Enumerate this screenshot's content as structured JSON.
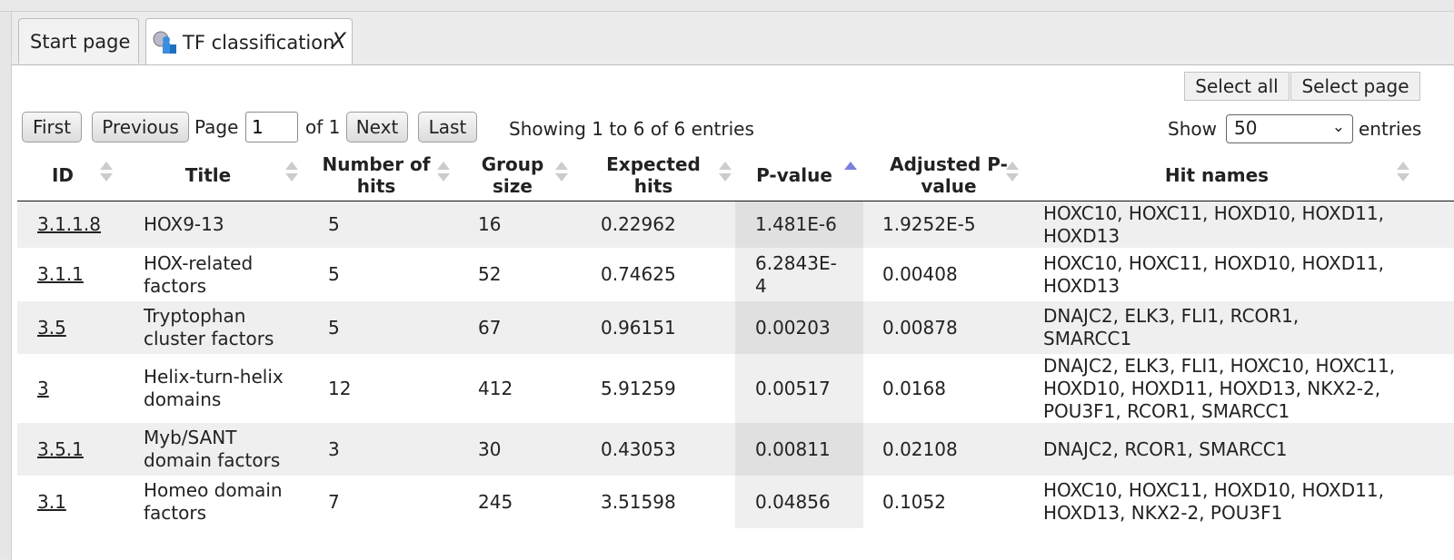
{
  "tabs": [
    {
      "label": "Start page"
    },
    {
      "label": "TF classification",
      "close": "X"
    }
  ],
  "toolbar": {
    "select_all": "Select all",
    "select_page": "Select page"
  },
  "pagination": {
    "first": "First",
    "previous": "Previous",
    "page_label": "Page",
    "page_value": "1",
    "of_label": "of 1",
    "next": "Next",
    "last": "Last",
    "showing": "Showing 1 to 6 of 6 entries",
    "show_label": "Show",
    "show_value": "50",
    "entries_label": "entries"
  },
  "table": {
    "columns": [
      "ID",
      "Title",
      "Number of hits",
      "Group size",
      "Expected hits",
      "P-value",
      "Adjusted P-value",
      "Hit names"
    ],
    "sorted_column": "P-value",
    "rows": [
      {
        "id": "3.1.1.8",
        "title": "HOX9-13",
        "hits": "5",
        "group": "16",
        "expected": "0.22962",
        "p": "1.481E-6",
        "adj": "1.9252E-5",
        "names": "HOXC10, HOXC11, HOXD10, HOXD11, HOXD13"
      },
      {
        "id": "3.1.1",
        "title": "HOX-related factors",
        "hits": "5",
        "group": "52",
        "expected": "0.74625",
        "p": "6.2843E-4",
        "adj": "0.00408",
        "names": "HOXC10, HOXC11, HOXD10, HOXD11, HOXD13"
      },
      {
        "id": "3.5",
        "title": "Tryptophan cluster factors",
        "hits": "5",
        "group": "67",
        "expected": "0.96151",
        "p": "0.00203",
        "adj": "0.00878",
        "names": "DNAJC2, ELK3, FLI1, RCOR1, SMARCC1"
      },
      {
        "id": "3",
        "title": "Helix-turn-helix domains",
        "hits": "12",
        "group": "412",
        "expected": "5.91259",
        "p": "0.00517",
        "adj": "0.0168",
        "names": "DNAJC2, ELK3, FLI1, HOXC10, HOXC11, HOXD10, HOXD11, HOXD13, NKX2-2, POU3F1, RCOR1, SMARCC1"
      },
      {
        "id": "3.5.1",
        "title": "Myb/SANT domain factors",
        "hits": "3",
        "group": "30",
        "expected": "0.43053",
        "p": "0.00811",
        "adj": "0.02108",
        "names": "DNAJC2, RCOR1, SMARCC1"
      },
      {
        "id": "3.1",
        "title": "Homeo domain factors",
        "hits": "7",
        "group": "245",
        "expected": "3.51598",
        "p": "0.04856",
        "adj": "0.1052",
        "names": "HOXC10, HOXC11, HOXD10, HOXD11, HOXD13, NKX2-2, POU3F1"
      }
    ]
  }
}
